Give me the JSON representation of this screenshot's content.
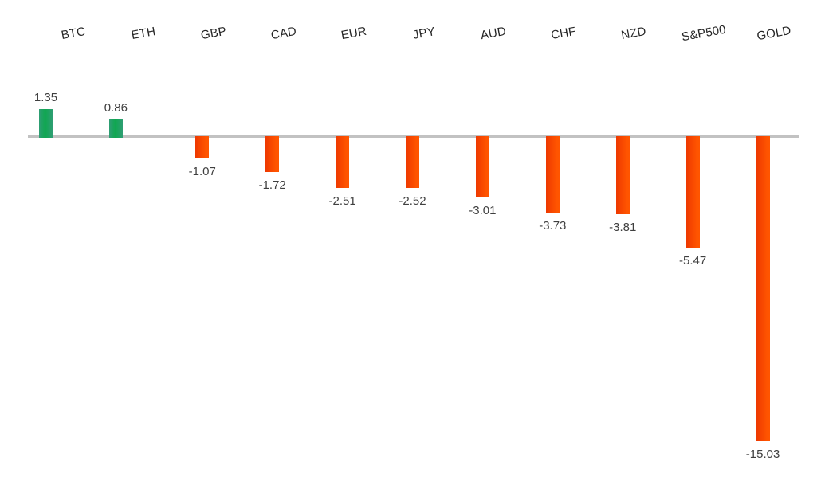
{
  "chart_data": {
    "type": "bar",
    "title": "",
    "xlabel": "",
    "ylabel": "",
    "categories": [
      "BTC",
      "ETH",
      "GBP",
      "CAD",
      "EUR",
      "JPY",
      "AUD",
      "CHF",
      "NZD",
      "S&P500",
      "GOLD"
    ],
    "values": [
      1.35,
      0.86,
      -1.07,
      -1.72,
      -2.51,
      -2.52,
      -3.01,
      -3.73,
      -3.81,
      -5.47,
      -15.03
    ],
    "value_labels": [
      "1.35",
      "0.86",
      "-1.07",
      "-1.72",
      "-2.51",
      "-2.52",
      "-3.01",
      "-3.73",
      "-3.81",
      "-5.47",
      "-15.03"
    ],
    "ylim": [
      -16,
      2
    ],
    "legend_position": "none",
    "gridlines": false,
    "y_axis_visible": false,
    "zero_line_visible": true,
    "value_labels_shown": true,
    "category_labels_position": "top",
    "category_label_rotation_deg": -10,
    "colors": {
      "positive_fill": "#0fa750",
      "positive_edge": "#2f9e74",
      "negative_fill": "#ff5500",
      "negative_edge": "#ee3800",
      "zero_line": "#c2c2c2",
      "category_text": "#262626",
      "value_text": "#3f3f3f",
      "background": "#ffffff"
    }
  }
}
